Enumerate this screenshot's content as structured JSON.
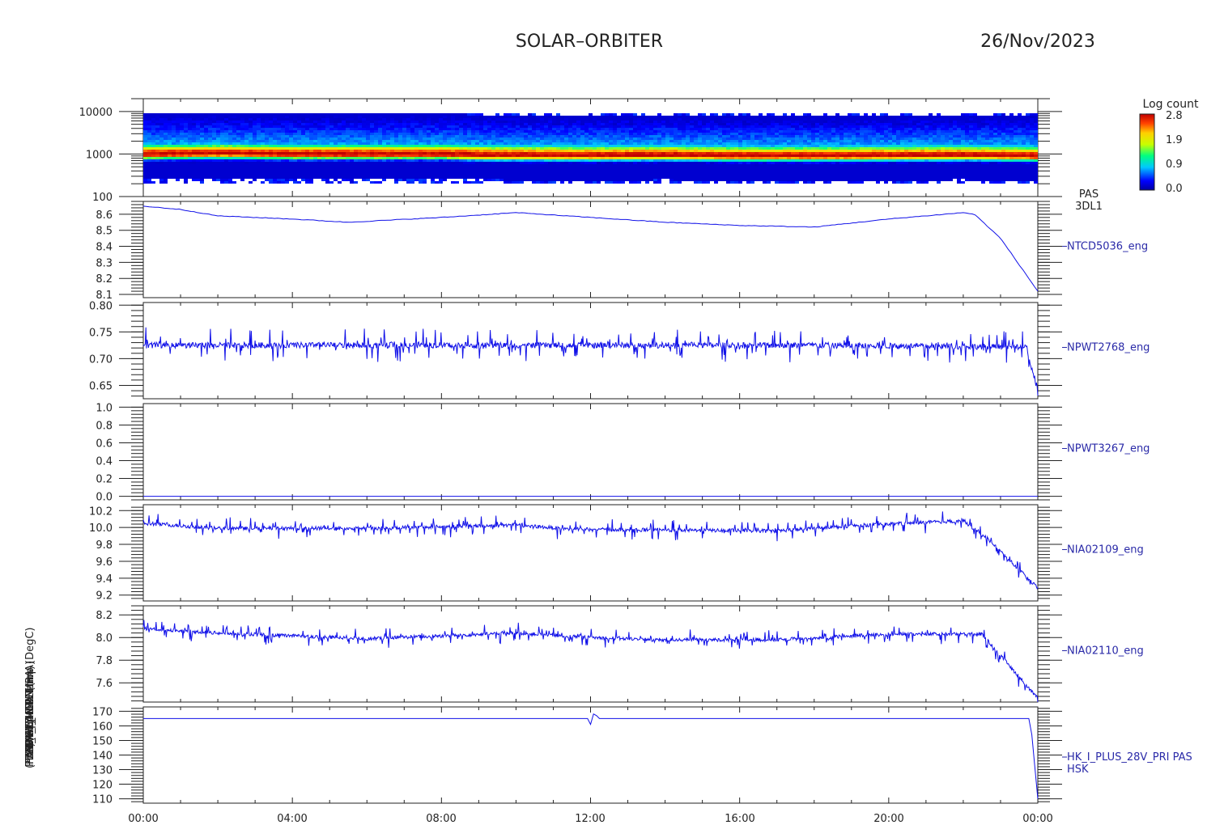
{
  "header": {
    "mission": "SOLAR–ORBITER",
    "date": "26/Nov/2023"
  },
  "colorbar": {
    "title": "Log count",
    "ticks": [
      "2.8",
      "1.9",
      "0.9",
      "0.0"
    ]
  },
  "ylabels_overlap": [
    "PAS (eV)",
    "TCD Approx Temp (DegC)",
    "SWA-EAS-TEMP",
    "RPW-THERM",
    "HK_I_MON (mA)",
    "PDM_HK_IMON (mA)",
    "(mA)"
  ],
  "x_tick_labels": [
    "00:00",
    "04:00",
    "08:00",
    "12:00",
    "16:00",
    "20:00",
    "00:00"
  ],
  "chart_data": [
    {
      "type": "heatmap",
      "name": "PAS 3DL1 energy spectrogram",
      "right_label": [
        "PAS",
        "3DL1"
      ],
      "yscale": "log",
      "ylim": [
        100,
        20000
      ],
      "yticks": [
        100,
        1000,
        10000
      ],
      "ytick_labels": [
        "100",
        "1000",
        "10000"
      ],
      "xlim_hours": [
        0,
        24
      ],
      "colorbar": {
        "label": "Log count",
        "range": [
          0.0,
          2.8
        ],
        "ticks": [
          2.8,
          1.9,
          0.9,
          0.0
        ]
      },
      "peak_energy_eV": [
        {
          "t": 0,
          "e": 1050
        },
        {
          "t": 2,
          "e": 1100
        },
        {
          "t": 4,
          "e": 1050
        },
        {
          "t": 6,
          "e": 1050
        },
        {
          "t": 8,
          "e": 1050
        },
        {
          "t": 9,
          "e": 1000
        },
        {
          "t": 12,
          "e": 980
        },
        {
          "t": 14,
          "e": 1000
        },
        {
          "t": 16,
          "e": 960
        },
        {
          "t": 18,
          "e": 960
        },
        {
          "t": 20,
          "e": 980
        },
        {
          "t": 22,
          "e": 1000
        },
        {
          "t": 24,
          "e": 950
        }
      ]
    },
    {
      "type": "line",
      "name": "NTCD5036_eng",
      "ylim": [
        8.08,
        8.68
      ],
      "yticks": [
        8.1,
        8.2,
        8.3,
        8.4,
        8.5,
        8.6
      ],
      "x": [
        0,
        1,
        2,
        4,
        5.5,
        8,
        10,
        12,
        14,
        16,
        18,
        20,
        22,
        22.3,
        23,
        24
      ],
      "y": [
        8.65,
        8.63,
        8.59,
        8.57,
        8.55,
        8.58,
        8.61,
        8.58,
        8.55,
        8.53,
        8.52,
        8.57,
        8.61,
        8.6,
        8.45,
        8.12
      ]
    },
    {
      "type": "line",
      "name": "NPWT2768_eng",
      "ylim": [
        0.625,
        0.805
      ],
      "yticks": [
        0.65,
        0.7,
        0.75,
        0.8
      ],
      "noise": 0.018,
      "x": [
        0,
        6,
        12,
        18,
        23.7,
        24
      ],
      "y": [
        0.725,
        0.725,
        0.725,
        0.725,
        0.722,
        0.63
      ]
    },
    {
      "type": "line",
      "name": "NPWT3267_eng",
      "ylim": [
        -0.04,
        1.04
      ],
      "yticks": [
        0.0,
        0.2,
        0.4,
        0.6,
        0.8,
        1.0
      ],
      "x": [
        0,
        24
      ],
      "y": [
        0.0,
        0.0
      ]
    },
    {
      "type": "line",
      "name": "NIA02109_eng",
      "ylim": [
        9.13,
        10.27
      ],
      "yticks": [
        9.2,
        9.4,
        9.6,
        9.8,
        10.0,
        10.2
      ],
      "noise": 0.07,
      "x": [
        0,
        2,
        6,
        10,
        11.5,
        14,
        17,
        19,
        22,
        22.7,
        24
      ],
      "y": [
        10.05,
        9.99,
        9.99,
        10.03,
        9.98,
        9.97,
        9.96,
        10.02,
        10.08,
        9.85,
        9.28
      ]
    },
    {
      "type": "line",
      "name": "NIA02110_eng",
      "ylim": [
        7.43,
        8.28
      ],
      "yticks": [
        7.6,
        7.8,
        8.0,
        8.2
      ],
      "noise": 0.05,
      "x": [
        0,
        2,
        6,
        10,
        12,
        14,
        17,
        20,
        22.5,
        24
      ],
      "y": [
        8.08,
        8.04,
        7.99,
        8.04,
        8.0,
        7.98,
        7.98,
        8.03,
        8.03,
        7.46
      ]
    },
    {
      "type": "line",
      "name": "HK_I_PLUS_28V_PRI PAS HSK",
      "right_label": [
        "HK_I_PLUS_28V_PRI PAS",
        "HSK"
      ],
      "ylim": [
        107,
        173
      ],
      "yticks": [
        110,
        120,
        130,
        140,
        150,
        160,
        170
      ],
      "x": [
        0,
        11.95,
        12.0,
        12.1,
        12.2,
        23.8,
        24
      ],
      "y": [
        165,
        165,
        161,
        170,
        165,
        165,
        110
      ]
    }
  ]
}
